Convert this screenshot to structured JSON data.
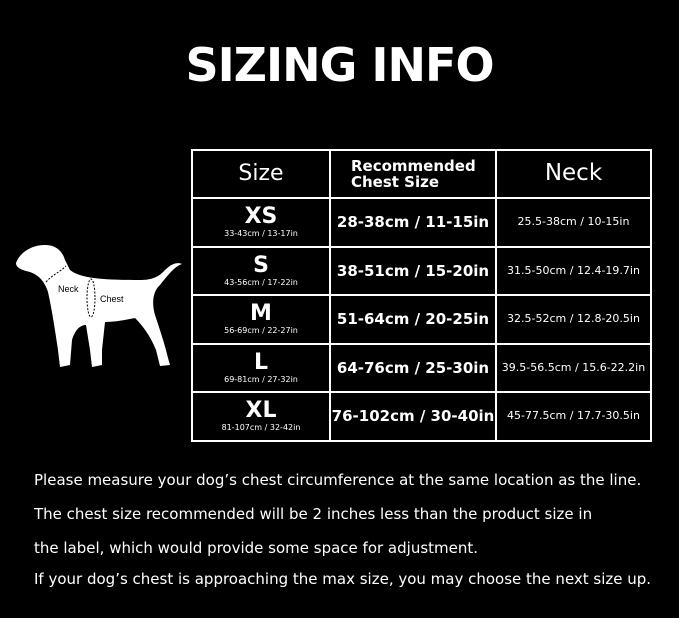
{
  "title": "SIZING INFO",
  "diagram": {
    "neck_label": "Neck",
    "chest_label": "Chest"
  },
  "table": {
    "headers": [
      "Size",
      "Recommended Chest Size",
      "Neck"
    ],
    "rows": [
      {
        "size": "XS",
        "size_range": "33-43cm / 13-17in",
        "chest": "28-38cm / 11-15in",
        "neck": "25.5-38cm / 10-15in"
      },
      {
        "size": "S",
        "size_range": "43-56cm / 17-22in",
        "chest": "38-51cm / 15-20in",
        "neck": "31.5-50cm / 12.4-19.7in"
      },
      {
        "size": "M",
        "size_range": "56-69cm / 22-27in",
        "chest": "51-64cm / 20-25in",
        "neck": "32.5-52cm / 12.8-20.5in"
      },
      {
        "size": "L",
        "size_range": "69-81cm / 27-32in",
        "chest": "64-76cm / 25-30in",
        "neck": "39.5-56.5cm / 15.6-22.2in"
      },
      {
        "size": "XL",
        "size_range": "81-107cm / 32-42in",
        "chest": "76-102cm / 30-40in",
        "neck": "45-77.5cm / 17.7-30.5in"
      }
    ]
  },
  "notes": [
    "Please measure your dog’s chest circumference at the same location as the line.",
    "The chest size recommended will be 2 inches less than the product size in",
    "the label, which would provide some space for adjustment.",
    "If your dog’s chest is approaching the max size, you may choose the next size up."
  ]
}
